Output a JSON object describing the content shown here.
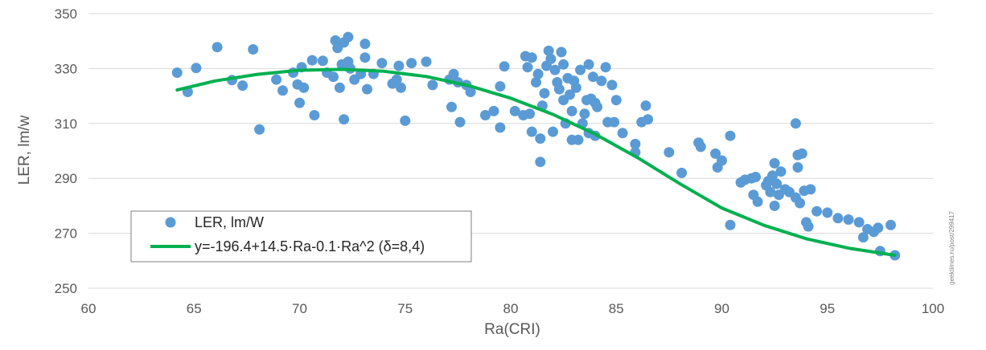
{
  "chart_data": {
    "type": "scatter",
    "title": "",
    "xlabel": "Ra(CRI)",
    "ylabel": "LER, lm/w",
    "xlim": [
      60,
      100
    ],
    "ylim": [
      250,
      350
    ],
    "xticks": [
      60,
      65,
      70,
      75,
      80,
      85,
      90,
      95,
      100
    ],
    "yticks": [
      250,
      270,
      290,
      310,
      330,
      350
    ],
    "grid": "horizontal",
    "legend_position": "lower-left",
    "colors": {
      "scatter": "#5b9bd5",
      "fit": "#00b050",
      "grid": "#d9d9d9",
      "text": "#595959"
    },
    "series": [
      {
        "name": "LER, lm/W",
        "kind": "scatter",
        "points": [
          [
            64.2,
            328.5
          ],
          [
            64.7,
            321.5
          ],
          [
            65.1,
            330.2
          ],
          [
            66.1,
            337.8
          ],
          [
            66.8,
            325.8
          ],
          [
            67.3,
            323.8
          ],
          [
            67.8,
            337.0
          ],
          [
            68.1,
            307.8
          ],
          [
            68.9,
            326.0
          ],
          [
            69.2,
            322.0
          ],
          [
            69.7,
            328.5
          ],
          [
            69.9,
            324.2
          ],
          [
            70.0,
            317.5
          ],
          [
            70.1,
            330.5
          ],
          [
            70.2,
            323.0
          ],
          [
            70.6,
            333.0
          ],
          [
            70.7,
            313.0
          ],
          [
            71.1,
            332.8
          ],
          [
            71.3,
            328.5
          ],
          [
            71.6,
            327.0
          ],
          [
            71.7,
            340.2
          ],
          [
            71.8,
            337.5
          ],
          [
            71.9,
            323.0
          ],
          [
            72.0,
            331.5
          ],
          [
            72.1,
            339.5
          ],
          [
            72.1,
            311.5
          ],
          [
            72.3,
            341.5
          ],
          [
            72.3,
            332.5
          ],
          [
            72.4,
            330.0
          ],
          [
            72.6,
            326.0
          ],
          [
            72.9,
            328.0
          ],
          [
            73.1,
            339.0
          ],
          [
            73.1,
            334.0
          ],
          [
            73.2,
            322.5
          ],
          [
            73.5,
            328.0
          ],
          [
            73.9,
            332.0
          ],
          [
            74.4,
            324.5
          ],
          [
            74.6,
            326.0
          ],
          [
            74.7,
            331.0
          ],
          [
            74.8,
            323.0
          ],
          [
            75.0,
            311.0
          ],
          [
            75.3,
            332.0
          ],
          [
            76.0,
            332.5
          ],
          [
            76.3,
            324.0
          ],
          [
            77.1,
            326.0
          ],
          [
            77.2,
            316.0
          ],
          [
            77.3,
            328.0
          ],
          [
            77.5,
            325.0
          ],
          [
            77.6,
            310.5
          ],
          [
            77.9,
            324.0
          ],
          [
            78.1,
            321.5
          ],
          [
            78.8,
            313.0
          ],
          [
            79.2,
            314.5
          ],
          [
            79.5,
            308.5
          ],
          [
            79.5,
            323.5
          ],
          [
            79.7,
            330.8
          ],
          [
            80.2,
            314.5
          ],
          [
            80.6,
            313.0
          ],
          [
            80.7,
            334.5
          ],
          [
            80.8,
            330.5
          ],
          [
            80.9,
            313.5
          ],
          [
            81.0,
            334.0
          ],
          [
            81.0,
            307.0
          ],
          [
            81.2,
            325.0
          ],
          [
            81.3,
            328.0
          ],
          [
            81.4,
            304.5
          ],
          [
            81.4,
            296.0
          ],
          [
            81.5,
            316.5
          ],
          [
            81.6,
            321.0
          ],
          [
            81.7,
            331.0
          ],
          [
            81.8,
            336.5
          ],
          [
            81.9,
            333.5
          ],
          [
            82.0,
            307.0
          ],
          [
            82.1,
            329.5
          ],
          [
            82.2,
            325.0
          ],
          [
            82.3,
            322.5
          ],
          [
            82.4,
            336.0
          ],
          [
            82.5,
            318.5
          ],
          [
            82.5,
            331.5
          ],
          [
            82.6,
            310.0
          ],
          [
            82.7,
            326.5
          ],
          [
            82.8,
            320.5
          ],
          [
            82.9,
            314.5
          ],
          [
            82.9,
            304.0
          ],
          [
            83.0,
            325.5
          ],
          [
            83.1,
            323.0
          ],
          [
            83.2,
            304.0
          ],
          [
            83.3,
            329.5
          ],
          [
            83.4,
            310.0
          ],
          [
            83.5,
            313.5
          ],
          [
            83.6,
            318.5
          ],
          [
            83.7,
            331.5
          ],
          [
            83.7,
            306.5
          ],
          [
            83.8,
            319.0
          ],
          [
            83.9,
            327.0
          ],
          [
            84.0,
            305.5
          ],
          [
            84.0,
            317.5
          ],
          [
            84.1,
            316.0
          ],
          [
            84.3,
            325.5
          ],
          [
            84.5,
            330.5
          ],
          [
            84.6,
            310.5
          ],
          [
            84.8,
            324.0
          ],
          [
            84.9,
            310.5
          ],
          [
            85.0,
            318.5
          ],
          [
            85.3,
            306.5
          ],
          [
            85.9,
            302.5
          ],
          [
            85.9,
            299.5
          ],
          [
            86.2,
            310.5
          ],
          [
            86.4,
            316.5
          ],
          [
            86.5,
            311.5
          ],
          [
            87.5,
            299.5
          ],
          [
            88.1,
            292.0
          ],
          [
            88.9,
            303.0
          ],
          [
            89.0,
            301.5
          ],
          [
            89.7,
            299.0
          ],
          [
            89.8,
            294.0
          ],
          [
            90.0,
            296.5
          ],
          [
            90.4,
            305.5
          ],
          [
            90.4,
            273.0
          ],
          [
            90.9,
            288.5
          ],
          [
            91.1,
            289.5
          ],
          [
            91.4,
            290.0
          ],
          [
            91.5,
            284.0
          ],
          [
            91.6,
            290.5
          ],
          [
            91.7,
            281.5
          ],
          [
            92.1,
            287.5
          ],
          [
            92.2,
            289.0
          ],
          [
            92.3,
            285.0
          ],
          [
            92.4,
            291.0
          ],
          [
            92.5,
            280.0
          ],
          [
            92.5,
            295.5
          ],
          [
            92.6,
            288.0
          ],
          [
            92.7,
            284.0
          ],
          [
            92.8,
            292.5
          ],
          [
            93.0,
            286.0
          ],
          [
            93.2,
            285.0
          ],
          [
            93.5,
            310.0
          ],
          [
            93.5,
            283.0
          ],
          [
            93.6,
            298.5
          ],
          [
            93.6,
            294.0
          ],
          [
            93.7,
            281.0
          ],
          [
            93.8,
            299.0
          ],
          [
            93.9,
            285.5
          ],
          [
            94.0,
            274.0
          ],
          [
            94.1,
            272.5
          ],
          [
            94.2,
            286.0
          ],
          [
            94.5,
            278.0
          ],
          [
            95.0,
            277.5
          ],
          [
            95.5,
            275.5
          ],
          [
            96.0,
            275.0
          ],
          [
            96.5,
            274.0
          ],
          [
            96.7,
            268.5
          ],
          [
            96.9,
            271.5
          ],
          [
            97.2,
            270.5
          ],
          [
            97.4,
            272.0
          ],
          [
            97.5,
            263.5
          ],
          [
            98.0,
            273.0
          ],
          [
            98.2,
            262.0
          ]
        ]
      },
      {
        "name": "y=-196.4+14.5·Ra-0.1·Ra^2 (δ=8,4)",
        "kind": "line",
        "x_range": [
          64.2,
          98.2
        ],
        "fit_points": [
          [
            64.2,
            322.2
          ],
          [
            66,
            325.5
          ],
          [
            68,
            327.9
          ],
          [
            70,
            329.4
          ],
          [
            72,
            329.7
          ],
          [
            74,
            329.0
          ],
          [
            76,
            327.1
          ],
          [
            78,
            323.8
          ],
          [
            80,
            319.2
          ],
          [
            82,
            313.3
          ],
          [
            84,
            306.1
          ],
          [
            86,
            297.6
          ],
          [
            88,
            288.1
          ],
          [
            90,
            279.2
          ],
          [
            92,
            272.9
          ],
          [
            94,
            268.0
          ],
          [
            96,
            264.6
          ],
          [
            98.2,
            262.0
          ]
        ]
      }
    ],
    "legend": [
      {
        "label": "LER, lm/W",
        "marker": "circle"
      },
      {
        "label": "y=-196.4+14.5·Ra-0.1·Ra^2 (δ=8,4)",
        "marker": "line"
      }
    ]
  },
  "watermark": "geektimes.ru/post/299417"
}
